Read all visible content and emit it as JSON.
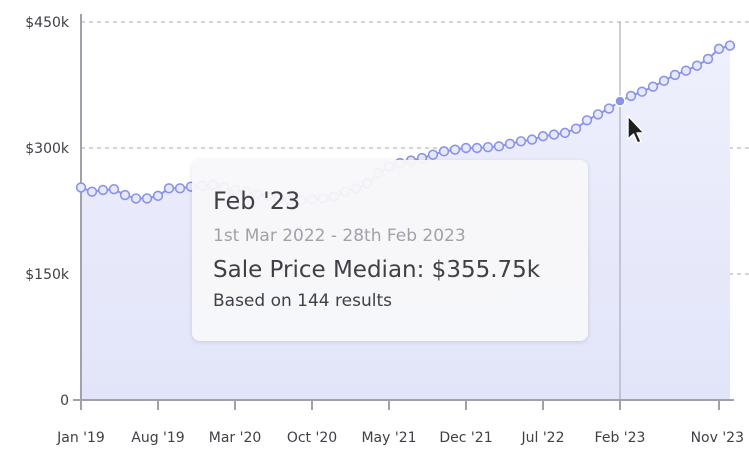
{
  "chart_data": {
    "type": "area",
    "title": "",
    "xlabel": "",
    "ylabel": "",
    "x_start": "Jan '19",
    "x_step": "month",
    "ylim": [
      0,
      450000
    ],
    "y_ticks": [
      {
        "value": 0,
        "label": "0"
      },
      {
        "value": 150000,
        "label": "$150k"
      },
      {
        "value": 300000,
        "label": "$300k"
      },
      {
        "value": 450000,
        "label": "$450k"
      }
    ],
    "x_ticks": [
      {
        "index": 0,
        "label": "Jan '19"
      },
      {
        "index": 7,
        "label": "Aug '19"
      },
      {
        "index": 14,
        "label": "Mar '20"
      },
      {
        "index": 21,
        "label": "Oct '20"
      },
      {
        "index": 28,
        "label": "May '21"
      },
      {
        "index": 35,
        "label": "Dec '21"
      },
      {
        "index": 42,
        "label": "Jul '22"
      },
      {
        "index": 49,
        "label": "Feb '23"
      },
      {
        "index": 58,
        "label": "Nov '23"
      }
    ],
    "series": [
      {
        "values": [
          253000,
          248000,
          250000,
          251000,
          244000,
          240000,
          240000,
          243000,
          252000,
          252000,
          254000,
          255000,
          256000,
          253000,
          250000,
          248000,
          245000,
          243000,
          240000,
          238000,
          238000,
          239000,
          240000,
          242000,
          248000,
          252000,
          258000,
          270000,
          278000,
          282000,
          285000,
          288000,
          292000,
          296000,
          298000,
          300000,
          300000,
          301000,
          302000,
          305000,
          308000,
          310000,
          314000,
          316000,
          318000,
          323000,
          333000,
          340000,
          347000,
          355750,
          362000,
          367000,
          373000,
          380000,
          387000,
          392000,
          398000,
          406000,
          418000,
          422000
        ],
        "color": "#8b93e8"
      }
    ],
    "grid": "horizontal dashed",
    "highlight": {
      "index": 49,
      "label": "Feb '23"
    }
  },
  "tooltip": {
    "title": "Feb '23",
    "range": "1st Mar 2022 - 28th Feb 2023",
    "value": "Sale Price Median: $355.75k",
    "count": "Based on 144 results"
  },
  "colors": {
    "line": "#8b93e8",
    "fill_top": "#eef0fd",
    "fill_bottom": "#e2e4f9",
    "grid": "#d4d4d8",
    "axis": "#a1a1aa"
  }
}
